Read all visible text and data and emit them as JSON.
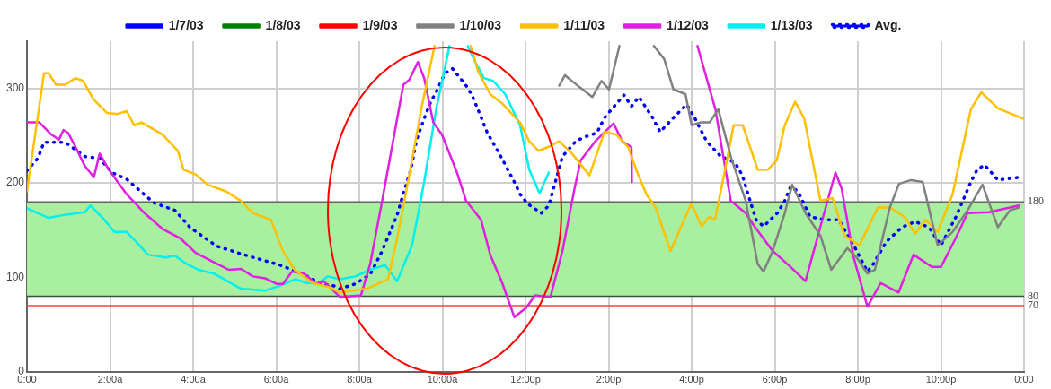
{
  "chart_data": {
    "type": "line",
    "xlim": [
      0,
      24
    ],
    "xticks": [
      {
        "value": 0,
        "label": "0:00"
      },
      {
        "value": 2,
        "label": "2:00a"
      },
      {
        "value": 4,
        "label": "4:00a"
      },
      {
        "value": 6,
        "label": "6:00a"
      },
      {
        "value": 8,
        "label": "8:00a"
      },
      {
        "value": 10,
        "label": "10:00a"
      },
      {
        "value": 12,
        "label": "12:00p"
      },
      {
        "value": 14,
        "label": "2:00p"
      },
      {
        "value": 16,
        "label": "4:00p"
      },
      {
        "value": 18,
        "label": "6:00p"
      },
      {
        "value": 20,
        "label": "8:00p"
      },
      {
        "value": 22,
        "label": "10:00p"
      },
      {
        "value": 24,
        "label": "0:00"
      }
    ],
    "ylim": [
      0,
      350
    ],
    "yticks": [
      0,
      100,
      200,
      300
    ],
    "grid": true,
    "legend": "top",
    "marker": "none",
    "bands": [
      {
        "axis": "y",
        "from": 80,
        "to": 180,
        "color": "#a8f0a0"
      }
    ],
    "ref_lines": [
      {
        "axis": "y",
        "value": 180,
        "label": "180",
        "color": "#666666"
      },
      {
        "axis": "y",
        "value": 80,
        "label": "80",
        "color": "#335533"
      },
      {
        "axis": "y",
        "value": 70,
        "label": "70",
        "color": "#ff4040"
      }
    ],
    "series": [
      {
        "name": "1/7/03",
        "color": "#0000ff"
      },
      {
        "name": "1/8/03",
        "color": "#008000"
      },
      {
        "name": "1/9/03",
        "color": "#ff0000"
      },
      {
        "name": "1/10/03",
        "color": "#808080",
        "x": [
          12.81,
          12.95,
          13.17,
          13.61,
          13.83,
          14.01,
          14.26,
          14.7,
          15.09,
          15.34,
          15.56,
          15.85,
          16.0,
          16.21,
          16.43,
          16.64,
          16.94,
          17.3,
          17.59,
          17.73,
          17.95,
          18.24,
          18.42,
          18.74,
          19.1,
          19.36,
          19.75,
          19.97,
          20.23,
          20.41,
          20.77,
          20.99,
          21.28,
          21.56,
          21.92,
          22.28,
          22.64,
          23.0,
          23.37,
          23.66,
          23.88
        ],
        "values": [
          303,
          314,
          306,
          291,
          308,
          299,
          345,
          null,
          345,
          331,
          299,
          294,
          261,
          264,
          264,
          278,
          228,
          181,
          114,
          106,
          128,
          168,
          198,
          168,
          144,
          108,
          131,
          121,
          104,
          108,
          174,
          199,
          203,
          201,
          134,
          148,
          171,
          198,
          153,
          171,
          174
        ]
      },
      {
        "name": "1/11/03",
        "color": "#ffc000",
        "x": [
          0,
          0.41,
          0.52,
          0.7,
          0.92,
          1.17,
          1.35,
          1.61,
          1.93,
          2.18,
          2.4,
          2.58,
          2.76,
          3.27,
          3.63,
          3.77,
          4.06,
          4.35,
          4.79,
          5.15,
          5.44,
          5.87,
          6.16,
          6.44,
          6.88,
          7.31,
          7.53,
          8.18,
          8.69,
          8.91,
          9.2,
          9.49,
          9.81,
          10.2,
          10.68,
          10.86,
          11.15,
          11.44,
          11.87,
          12.09,
          12.31,
          12.6,
          12.81,
          13.12,
          13.54,
          13.9,
          14.19,
          14.47,
          14.69,
          14.91,
          15.13,
          15.49,
          15.99,
          16.24,
          16.42,
          16.56,
          16.79,
          17.01,
          17.23,
          17.59,
          17.83,
          18.05,
          18.24,
          18.49,
          18.71,
          19.1,
          19.39,
          19.68,
          20.04,
          20.48,
          20.77,
          21.13,
          21.38,
          21.63,
          21.92,
          22.28,
          22.72,
          22.97,
          23.37,
          23.98
        ],
        "values": [
          191,
          316,
          316,
          304,
          304,
          311,
          308,
          288,
          274,
          273,
          276,
          261,
          264,
          251,
          234,
          214,
          209,
          198,
          191,
          181,
          168,
          161,
          128,
          108,
          94,
          89,
          84,
          88,
          98,
          141,
          208,
          278,
          345,
          null,
          345,
          318,
          294,
          284,
          264,
          244,
          234,
          239,
          244,
          231,
          208,
          254,
          251,
          238,
          211,
          188,
          174,
          128,
          178,
          154,
          164,
          161,
          211,
          261,
          261,
          214,
          214,
          224,
          261,
          286,
          268,
          181,
          184,
          144,
          134,
          174,
          174,
          164,
          146,
          161,
          148,
          188,
          278,
          296,
          279,
          268
        ]
      },
      {
        "name": "1/12/03",
        "color": "#e020e0",
        "x": [
          0,
          0.3,
          0.59,
          0.77,
          0.88,
          0.99,
          1.17,
          1.39,
          1.61,
          1.75,
          1.97,
          2.4,
          2.83,
          3.27,
          3.7,
          4.06,
          4.5,
          4.86,
          5.15,
          5.44,
          5.73,
          6.02,
          6.16,
          6.38,
          6.67,
          6.96,
          7.14,
          7.54,
          8.04,
          8.26,
          8.55,
          8.84,
          9.06,
          9.2,
          9.41,
          9.56,
          9.78,
          9.99,
          10.35,
          10.57,
          10.93,
          11.15,
          11.44,
          11.73,
          12.02,
          12.23,
          12.6,
          12.89,
          13.18,
          13.33,
          13.68,
          14.12,
          14.33,
          14.55,
          14.56,
          15.3,
          16.14,
          16.57,
          16.94,
          17.3,
          17.51,
          17.95,
          18.38,
          18.74,
          19.1,
          19.46,
          19.61,
          19.9,
          20.23,
          20.55,
          20.98,
          21.34,
          21.78,
          22.0,
          22.35,
          22.64,
          23.15,
          23.88
        ],
        "values": [
          264,
          264,
          251,
          246,
          256,
          253,
          238,
          218,
          206,
          231,
          214,
          188,
          168,
          151,
          141,
          126,
          116,
          108,
          109,
          101,
          99,
          93,
          93,
          106,
          104,
          93,
          96,
          79,
          81,
          114,
          181,
          251,
          304,
          309,
          328,
          311,
          264,
          251,
          211,
          181,
          161,
          124,
          94,
          58,
          68,
          81,
          79,
          128,
          194,
          224,
          244,
          263,
          244,
          238,
          201,
          null,
          345,
          278,
          181,
          168,
          154,
          128,
          111,
          96,
          154,
          211,
          194,
          121,
          69,
          94,
          84,
          124,
          111,
          111,
          141,
          168,
          169,
          176
        ]
      },
      {
        "name": "1/13/03",
        "color": "#00f0f0",
        "x": [
          0,
          0.52,
          0.88,
          1.39,
          1.53,
          1.82,
          2.11,
          2.4,
          2.62,
          2.91,
          3.34,
          3.56,
          3.85,
          4.13,
          4.5,
          5.15,
          5.73,
          6.09,
          6.45,
          6.74,
          7.03,
          7.24,
          7.54,
          7.9,
          8.26,
          8.62,
          8.91,
          9.27,
          9.56,
          9.85,
          10.17,
          10.4,
          10.61,
          10.79,
          11.0,
          11.22,
          11.51,
          11.87,
          12.09,
          12.34,
          12.56
        ],
        "values": [
          173,
          163,
          166,
          169,
          176,
          163,
          148,
          148,
          138,
          124,
          121,
          123,
          114,
          108,
          104,
          88,
          86,
          91,
          98,
          94,
          94,
          101,
          98,
          101,
          108,
          113,
          96,
          134,
          201,
          278,
          345,
          null,
          345,
          328,
          311,
          308,
          294,
          261,
          214,
          189,
          211
        ]
      },
      {
        "name": "Avg.",
        "color": "#0000ff",
        "line_style": "dotted",
        "x": [
          0,
          0.26,
          0.41,
          0.92,
          1.39,
          1.75,
          2.04,
          2.4,
          3.05,
          3.56,
          3.92,
          4.57,
          5.22,
          6.09,
          6.67,
          7.03,
          7.39,
          7.53,
          7.9,
          8.26,
          8.55,
          8.91,
          9.06,
          9.24,
          9.38,
          9.56,
          9.7,
          9.88,
          10.06,
          10.24,
          10.39,
          10.57,
          10.71,
          10.9,
          11.08,
          11.37,
          11.55,
          11.73,
          11.87,
          12.05,
          12.38,
          12.56,
          12.89,
          13.21,
          13.39,
          13.72,
          13.9,
          14.37,
          14.55,
          14.73,
          15.06,
          15.24,
          15.56,
          15.88,
          16.07,
          16.36,
          16.68,
          17.05,
          17.22,
          17.37,
          17.55,
          17.73,
          18.06,
          18.24,
          18.38,
          18.56,
          18.85,
          19.21,
          19.54,
          19.9,
          20.23,
          20.37,
          20.69,
          21.06,
          21.38,
          21.71,
          22.0,
          22.36,
          22.72,
          22.87,
          23.05,
          23.37,
          23.88
        ],
        "values": [
          213,
          226,
          243,
          243,
          228,
          226,
          211,
          204,
          179,
          171,
          153,
          133,
          124,
          113,
          103,
          94,
          91,
          88,
          93,
          103,
          128,
          166,
          189,
          214,
          246,
          268,
          284,
          299,
          316,
          321,
          313,
          303,
          293,
          273,
          253,
          231,
          216,
          201,
          188,
          178,
          168,
          176,
          228,
          244,
          248,
          253,
          269,
          293,
          281,
          291,
          269,
          254,
          269,
          283,
          269,
          244,
          229,
          221,
          208,
          186,
          161,
          154,
          168,
          181,
          196,
          191,
          164,
          161,
          161,
          134,
          106,
          114,
          138,
          153,
          159,
          153,
          134,
          164,
          201,
          214,
          219,
          203,
          206
        ]
      }
    ]
  }
}
